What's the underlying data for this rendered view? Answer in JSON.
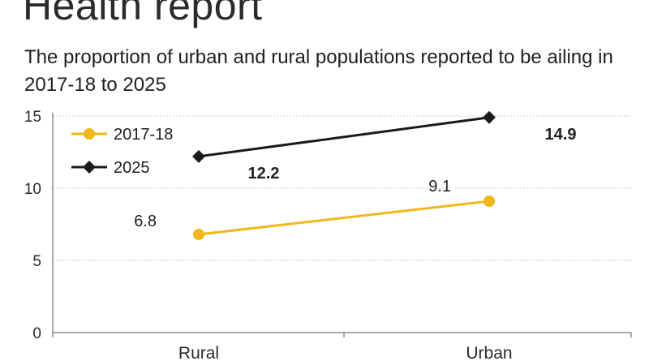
{
  "title": "Health report",
  "subtitle": "The proportion of urban and rural populations reported to be ailing in 2017-18 to 2025",
  "colors": {
    "series_2017": "#f2b71a",
    "series_2025": "#1a1a1a",
    "grid": "#c8c8c8",
    "axis": "#555555"
  },
  "chart_data": {
    "type": "line",
    "categories": [
      "Rural",
      "Urban"
    ],
    "ylim": [
      0,
      15
    ],
    "yticks": [
      "0",
      "5",
      "10",
      "15"
    ],
    "grid": true,
    "legend": "top-left",
    "series": [
      {
        "name": "2017-18",
        "values": [
          6.8,
          9.1
        ],
        "labels": [
          "6.8",
          "9.1"
        ],
        "marker": "circle",
        "color": "#f2b71a"
      },
      {
        "name": "2025",
        "values": [
          12.2,
          14.9
        ],
        "labels": [
          "12.2",
          "14.9"
        ],
        "marker": "diamond",
        "color": "#1a1a1a"
      }
    ]
  }
}
